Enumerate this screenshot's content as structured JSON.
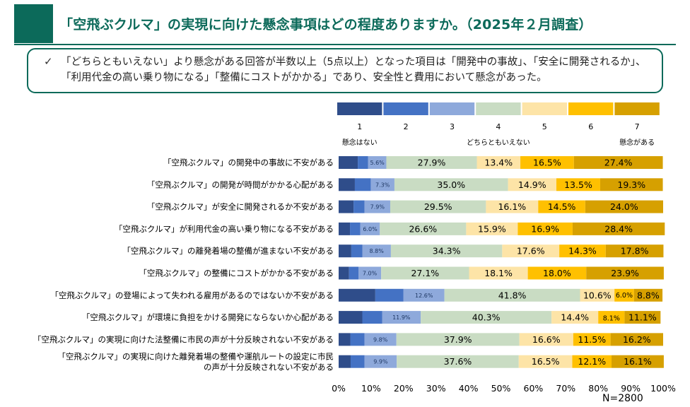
{
  "title": "「空飛ぶクルマ」の実現に向けた懸念事項はどの程度ありますか。（2025年２月調査）",
  "summary": {
    "bullet": "✓",
    "text": "「どちらともいえない」より懸念がある回答が半数以上（5点以上）となった項目は「開発中の事故」、「安全に開発されるか」、「利用代金の高い乗り物になる」「整備にコストがかかる」であり、安全性と費用において懸念があった。"
  },
  "chart_data": {
    "type": "bar",
    "orientation": "horizontal",
    "stacked": true,
    "percent": true,
    "scale_labels": [
      "1",
      "2",
      "3",
      "4",
      "5",
      "6",
      "7"
    ],
    "scale_colors": [
      "#2f4d8a",
      "#4472c4",
      "#8ea9db",
      "#c9dcc3",
      "#fde4a7",
      "#ffc000",
      "#d6a000"
    ],
    "scale_annotations": [
      {
        "level": 1,
        "text": "懸念はない"
      },
      {
        "level": 4,
        "text": "どちらともいえない"
      },
      {
        "level": 7,
        "text": "懸念がある"
      }
    ],
    "categories": [
      "「空飛ぶクルマ」の開発中の事故に不安がある",
      "「空飛ぶクルマ」の開発が時間がかかる心配がある",
      "「空飛ぶクルマ」が安全に開発されるか不安がある",
      "「空飛ぶクルマ」が利用代金の高い乗り物になる不安がある",
      "「空飛ぶクルマ」の離発着場の整備が進まない不安がある",
      "「空飛ぶクルマ」の整備にコストがかかる不安がある",
      "「空飛ぶクルマ」の登場によって失われる雇用があるのではないか不安がある",
      "「空飛ぶクルマ」が環境に負担をかける開発にならないか心配がある",
      "「空飛ぶクルマ」の実現に向けた法整備に市民の声が十分反映されない不安がある",
      "「空飛ぶクルマ」の実現に向けた離発着場の整備や運航ルートの設定に市民の声が十分反映されない不安がある"
    ],
    "series": [
      {
        "name": "1",
        "values": [
          5.9,
          5.0,
          4.6,
          3.5,
          3.9,
          3.2,
          11.3,
          7.3,
          3.6,
          3.7
        ]
      },
      {
        "name": "2",
        "values": [
          3.2,
          4.9,
          3.4,
          3.2,
          3.4,
          2.9,
          8.7,
          6.1,
          4.4,
          4.3
        ]
      },
      {
        "name": "3",
        "values": [
          5.6,
          7.3,
          7.9,
          6.0,
          8.8,
          7.0,
          12.6,
          11.9,
          9.8,
          9.9
        ]
      },
      {
        "name": "4",
        "values": [
          27.9,
          35.0,
          29.5,
          26.6,
          34.3,
          27.1,
          41.8,
          40.3,
          37.9,
          37.6
        ]
      },
      {
        "name": "5",
        "values": [
          13.4,
          14.9,
          16.1,
          15.9,
          17.6,
          18.1,
          10.6,
          14.4,
          16.6,
          16.5
        ]
      },
      {
        "name": "6",
        "values": [
          16.5,
          13.5,
          14.5,
          16.9,
          14.3,
          18.0,
          6.0,
          8.1,
          11.5,
          12.1
        ]
      },
      {
        "name": "7",
        "values": [
          27.4,
          19.3,
          24.0,
          28.4,
          17.8,
          23.9,
          8.8,
          11.1,
          16.2,
          16.1
        ]
      }
    ],
    "labeled_levels": [
      3,
      4,
      5,
      6,
      7
    ],
    "value_labels": [
      [
        "5.6%",
        "27.9%",
        "13.4%",
        "16.5%",
        "27.4%"
      ],
      [
        "7.3%",
        "35.0%",
        "14.9%",
        "13.5%",
        "19.3%"
      ],
      [
        "7.9%",
        "29.5%",
        "16.1%",
        "14.5%",
        "24.0%"
      ],
      [
        "6.0%",
        "26.6%",
        "15.9%",
        "16.9%",
        "28.4%"
      ],
      [
        "8.8%",
        "34.3%",
        "17.6%",
        "14.3%",
        "17.8%"
      ],
      [
        "7.0%",
        "27.1%",
        "18.1%",
        "18.0%",
        "23.9%"
      ],
      [
        "12.6%",
        "41.8%",
        "10.6%",
        "6.0%",
        "8.8%"
      ],
      [
        "11.9%",
        "40.3%",
        "14.4%",
        "8.1%",
        "11.1%"
      ],
      [
        "9.8%",
        "37.9%",
        "16.6%",
        "11.5%",
        "16.2%"
      ],
      [
        "9.9%",
        "37.6%",
        "16.5%",
        "12.1%",
        "16.1%"
      ]
    ],
    "x_ticks": [
      "0%",
      "10%",
      "20%",
      "30%",
      "40%",
      "50%",
      "60%",
      "70%",
      "80%",
      "90%",
      "100%"
    ],
    "xlim": [
      0,
      100
    ],
    "grid": false,
    "sample_note": "N=2800"
  }
}
